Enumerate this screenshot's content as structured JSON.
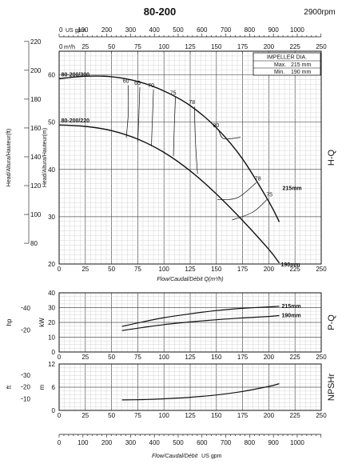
{
  "title": "80-200",
  "speed": "2900rpm",
  "top_axes": {
    "usgpm_label": "US gpm",
    "usgpm_ticks": [
      "0",
      "100",
      "200",
      "300",
      "400",
      "500",
      "600",
      "700",
      "800",
      "900",
      "1000"
    ],
    "m3h_label": "m³/h",
    "m3h_ticks": [
      "0",
      "25",
      "50",
      "75",
      "100",
      "125",
      "150",
      "175",
      "200",
      "225",
      "250"
    ]
  },
  "impeller_box": {
    "title": "IMPELLER DIA.",
    "max_label": "Max.",
    "max_value": "215 mm",
    "min_label": "Min.",
    "min_value": "190 mm"
  },
  "chart_data": [
    {
      "id": "H-Q",
      "type": "line",
      "side_label": "H-Q",
      "xlabel": "Flow/Caudal/Débit Q(m³/h)",
      "ylabel_left": "Head/Altura/Hauteur(ft)",
      "ylabel_right": "Head/Altura/Hauteur(m)",
      "xlim": [
        0,
        250
      ],
      "ylim": [
        20,
        65
      ],
      "x_ticks": [
        0,
        25,
        50,
        75,
        100,
        125,
        150,
        175,
        200,
        225,
        250
      ],
      "y_ticks_m": [
        20,
        30,
        40,
        50,
        60
      ],
      "y_ticks_ft": [
        80,
        100,
        120,
        140,
        160,
        180,
        200,
        220
      ],
      "series": [
        {
          "name": "80-200/300",
          "x": [
            0,
            25,
            50,
            75,
            100,
            125,
            150,
            175,
            200,
            210
          ],
          "y": [
            59.2,
            59.7,
            59.6,
            58.6,
            56.6,
            53.5,
            48.8,
            42.2,
            33.2,
            28.9
          ]
        },
        {
          "name": "80-200/220",
          "x": [
            0,
            25,
            50,
            75,
            100,
            125,
            150,
            175,
            200,
            210
          ],
          "y": [
            49.4,
            49.1,
            48.2,
            46.4,
            43.6,
            39.7,
            34.8,
            29.2,
            23.1,
            20.2
          ]
        }
      ],
      "curve_end_labels": [
        "215mm",
        "190mm"
      ],
      "efficiency_labels": [
        "60",
        "65",
        "70",
        "75",
        "78",
        "80",
        "78",
        "75"
      ],
      "efficiency_curves": [
        {
          "label": "60",
          "x": [
            66,
            66,
            64
          ],
          "y": [
            57.8,
            52,
            46.7
          ]
        },
        {
          "label": "65",
          "x": [
            77,
            76,
            75
          ],
          "y": [
            57.4,
            51,
            45.9
          ]
        },
        {
          "label": "70",
          "x": [
            90,
            89,
            88
          ],
          "y": [
            56.9,
            51,
            44.9
          ]
        },
        {
          "label": "75",
          "x": [
            111,
            110,
            109
          ],
          "y": [
            55.3,
            50,
            42.8
          ]
        },
        {
          "label": "78",
          "x": [
            129,
            130,
            132
          ],
          "y": [
            53.3,
            46,
            39.1
          ]
        },
        {
          "label": "80",
          "x": [
            152,
            157,
            173
          ],
          "y": [
            48.4,
            46.5,
            46.8
          ]
        },
        {
          "label": "78",
          "x": [
            188,
            170,
            151
          ],
          "y": [
            37.2,
            34,
            33.6
          ]
        },
        {
          "label": "75",
          "x": [
            199,
            185,
            165
          ],
          "y": [
            33.8,
            31,
            29.3
          ]
        }
      ]
    },
    {
      "id": "P-Q",
      "type": "line",
      "side_label": "P-Q",
      "ylabel_left": "hp",
      "ylabel_right": "kW",
      "xlim": [
        0,
        250
      ],
      "ylim": [
        0,
        40
      ],
      "x_ticks": [
        0,
        25,
        50,
        75,
        100,
        125,
        150,
        175,
        200,
        225,
        250
      ],
      "y_ticks_kw": [
        0,
        10,
        20,
        30,
        40
      ],
      "y_ticks_hp": [
        20,
        40
      ],
      "series": [
        {
          "name": "215mm",
          "x": [
            60,
            80,
            100,
            125,
            150,
            175,
            200,
            210
          ],
          "y": [
            17.3,
            20.4,
            23.2,
            25.8,
            28.0,
            29.5,
            30.5,
            30.9
          ]
        },
        {
          "name": "190mm",
          "x": [
            60,
            80,
            100,
            125,
            150,
            175,
            200,
            210
          ],
          "y": [
            14.5,
            16.6,
            18.5,
            20.3,
            21.8,
            23.0,
            24.0,
            24.6
          ]
        }
      ]
    },
    {
      "id": "NPSHr",
      "type": "line",
      "side_label": "NPSHr",
      "ylabel_left": "ft",
      "ylabel_right": "m",
      "xlim": [
        0,
        250
      ],
      "ylim": [
        0,
        12
      ],
      "x_ticks": [
        0,
        25,
        50,
        75,
        100,
        125,
        150,
        175,
        200,
        225,
        250
      ],
      "y_ticks_m": [
        0,
        6,
        12
      ],
      "y_ticks_ft": [
        10,
        20,
        30
      ],
      "series": [
        {
          "name": "NPSHr",
          "x": [
            60,
            80,
            100,
            125,
            150,
            175,
            200,
            210
          ],
          "y": [
            2.7,
            2.8,
            3.0,
            3.4,
            4.0,
            4.9,
            6.2,
            6.9
          ]
        }
      ]
    }
  ],
  "bottom_axis": {
    "usgpm_ticks": [
      "0",
      "100",
      "200",
      "300",
      "400",
      "500",
      "600",
      "700",
      "800",
      "900",
      "1000"
    ],
    "label": "Flow/Caudal/Débit",
    "unit": "US gpm"
  }
}
